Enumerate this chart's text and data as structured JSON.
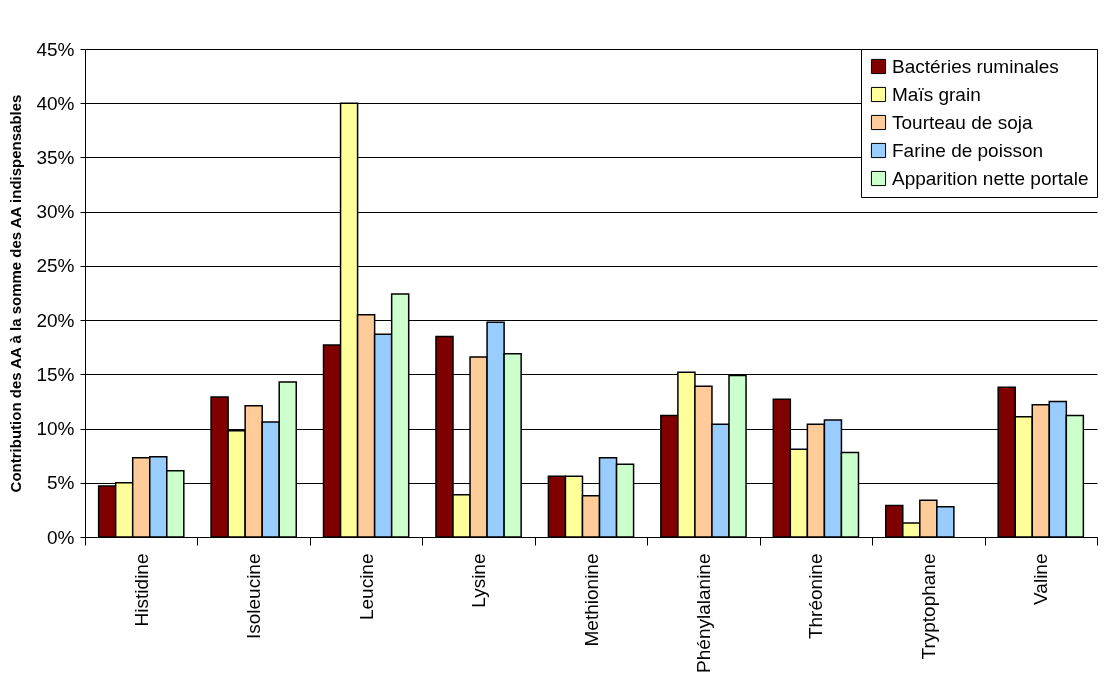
{
  "chart_data": {
    "type": "bar",
    "ylabel": "Contribution des AA à la somme des AA indispensables",
    "categories": [
      "Histidine",
      "Isoleucine",
      "Leucine",
      "Lysine",
      "Methionine",
      "Phénylalanine",
      "Thréonine",
      "Tryptophane",
      "Valine"
    ],
    "series": [
      {
        "name": "Bactéries ruminales",
        "color": "#800000",
        "values": [
          4.7,
          12.9,
          17.7,
          18.5,
          5.6,
          11.2,
          12.7,
          2.9,
          13.8
        ]
      },
      {
        "name": "Maïs grain",
        "color": "#ffff99",
        "values": [
          5.0,
          9.8,
          40.0,
          3.9,
          5.6,
          15.2,
          8.1,
          1.3,
          11.1
        ]
      },
      {
        "name": "Tourteau de soja",
        "color": "#ffcc99",
        "values": [
          7.3,
          12.1,
          20.5,
          16.6,
          3.8,
          13.9,
          10.4,
          3.4,
          12.2
        ]
      },
      {
        "name": "Farine de poisson",
        "color": "#99ccff",
        "values": [
          7.4,
          10.6,
          18.7,
          19.8,
          7.3,
          10.4,
          10.8,
          2.8,
          12.5
        ]
      },
      {
        "name": "Apparition nette portale",
        "color": "#ccffcc",
        "values": [
          6.1,
          14.3,
          22.4,
          16.9,
          6.7,
          14.9,
          7.8,
          null,
          11.2
        ]
      }
    ],
    "ylim": [
      0,
      45
    ],
    "yticks": [
      {
        "value": 0,
        "label": "0%"
      },
      {
        "value": 5,
        "label": "5%"
      },
      {
        "value": 10,
        "label": "10%"
      },
      {
        "value": 15,
        "label": "15%"
      },
      {
        "value": 20,
        "label": "20%"
      },
      {
        "value": 25,
        "label": "25%"
      },
      {
        "value": 30,
        "label": "30%"
      },
      {
        "value": 35,
        "label": "35%"
      },
      {
        "value": 40,
        "label": "40%"
      },
      {
        "value": 45,
        "label": "45%"
      }
    ],
    "grid": "y",
    "legend": "top right"
  }
}
